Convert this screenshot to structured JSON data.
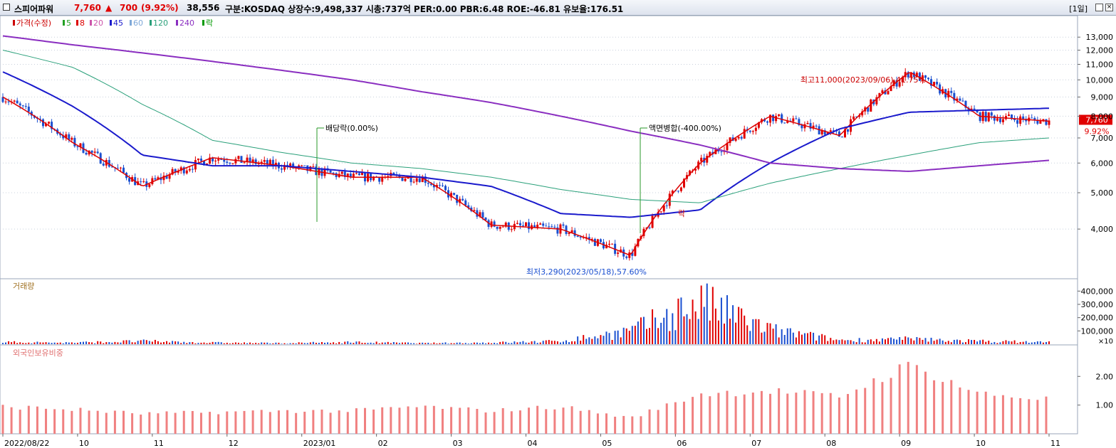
{
  "header": {
    "stock_name": "스피어파워",
    "price": "7,760",
    "change_arrow": "▲",
    "change": "700",
    "change_pct": "(9.92%)",
    "volume": "38,556",
    "info": "구분:KOSDAQ 상장수:9,498,337 시총:737억 PER:0.00 PBR:6.48 ROE:-46.81 유보율:176.51",
    "period": "[1일]",
    "colors": {
      "up": "#e00000",
      "down": "#1a4fd0",
      "name": "#000000"
    }
  },
  "price_panel": {
    "legend": [
      {
        "label": "가격(수정)",
        "color": "#cc0000"
      },
      {
        "label": "5",
        "color": "#22a022"
      },
      {
        "label": "8",
        "color": "#dd0000"
      },
      {
        "label": "20",
        "color": "#cc55aa"
      },
      {
        "label": "45",
        "color": "#1a1acc"
      },
      {
        "label": "60",
        "color": "#7fa8d8"
      },
      {
        "label": "120",
        "color": "#2aa07a"
      },
      {
        "label": "240",
        "color": "#8a2ec0"
      },
      {
        "label": "락",
        "color": "#009900"
      }
    ],
    "annotations": {
      "dividend": "배당락(0.00%)",
      "split": "액면병합(-400.00%)",
      "high": "최고11,000(2023/09/06),41.75%",
      "low": "최저3,290(2023/05/18),57.60%",
      "lock_marker": "락"
    },
    "current_price_label": "7,760",
    "current_pct_label": "9.92%",
    "ymin": 3000,
    "ymax": 14000,
    "yticks": [
      4000,
      5000,
      6000,
      7000,
      8000,
      9000,
      10000,
      11000,
      12000,
      13000
    ],
    "ytick_labels": [
      "4,000",
      "5,000",
      "6,000",
      "7,000",
      "8,000",
      "9,000",
      "10,000",
      "11,000",
      "12,000",
      "13,000"
    ]
  },
  "volume_panel": {
    "legend": "거래량",
    "yticks": [
      100000,
      200000,
      300000,
      400000
    ],
    "ytick_labels": [
      "100,000",
      "200,000",
      "300,000",
      "400,000"
    ],
    "unit_label": "×10"
  },
  "foreign_panel": {
    "legend": "외국인보유비중",
    "yticks": [
      1.0,
      2.0
    ],
    "ytick_labels": [
      "1.00",
      "2.00"
    ]
  },
  "xaxis": {
    "labels": [
      "2022/08/22",
      "10",
      "11",
      "12",
      "2023/01",
      "02",
      "03",
      "04",
      "05",
      "06",
      "07",
      "08",
      "09",
      "10",
      "11"
    ]
  },
  "chart_data": {
    "type": "line",
    "title": "스피어파워",
    "xlabel": "",
    "ylabel": "",
    "categories": [
      "2022-08",
      "2022-09",
      "2022-10",
      "2022-11",
      "2022-12",
      "2023-01",
      "2023-02",
      "2023-03",
      "2023-04",
      "2023-05",
      "2023-06",
      "2023-07",
      "2023-08",
      "2023-09",
      "2023-10",
      "2023-11"
    ],
    "ylim": [
      3000,
      14000
    ],
    "series": [
      {
        "name": "가격(수정)",
        "values": [
          9000,
          6800,
          5200,
          6200,
          5900,
          5500,
          5500,
          4100,
          4000,
          3400,
          6000,
          8000,
          7100,
          10500,
          8000,
          7760
        ]
      },
      {
        "name": "45",
        "values": [
          10500,
          8500,
          6300,
          5900,
          5900,
          5700,
          5500,
          5200,
          4400,
          4300,
          4500,
          6000,
          7400,
          8200,
          8300,
          8400
        ]
      },
      {
        "name": "120",
        "values": [
          12000,
          10800,
          8600,
          6900,
          6400,
          6000,
          5800,
          5500,
          5100,
          4800,
          4700,
          5300,
          5800,
          6300,
          6800,
          7000
        ]
      },
      {
        "name": "240",
        "values": [
          13100,
          12400,
          11800,
          11200,
          10600,
          10000,
          9300,
          8700,
          8000,
          7300,
          6700,
          6000,
          5800,
          5700,
          5900,
          6100
        ]
      }
    ],
    "volume": [
      20000,
      15000,
      30000,
      15000,
      10000,
      20000,
      10000,
      15000,
      30000,
      130000,
      420000,
      140000,
      40000,
      50000,
      30000,
      20000
    ],
    "foreign_ratio": [
      0.95,
      0.85,
      0.7,
      0.75,
      0.8,
      0.8,
      0.95,
      0.8,
      0.95,
      0.55,
      1.4,
      1.5,
      1.3,
      2.4,
      1.4,
      1.2
    ]
  }
}
